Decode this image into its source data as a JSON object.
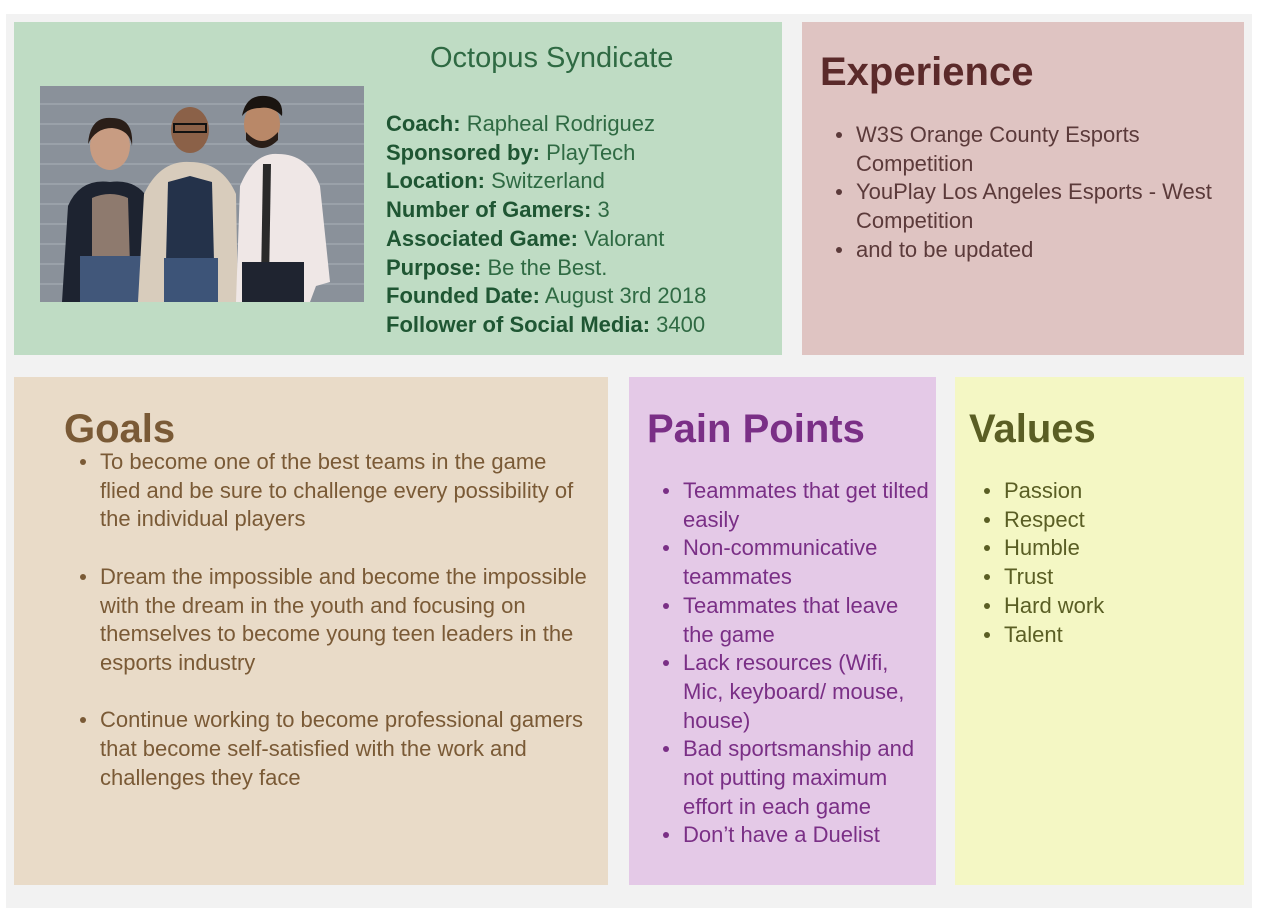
{
  "profile": {
    "title": "Octopus Syndicate",
    "details": [
      {
        "label": "Coach:",
        "value": "Rapheal Rodriguez"
      },
      {
        "label": "Sponsored by:",
        "value": "PlayTech"
      },
      {
        "label": "Location:",
        "value": "Switzerland"
      },
      {
        "label": "Number of Gamers:",
        "value": "3"
      },
      {
        "label": "Associated Game:",
        "value": "Valorant"
      },
      {
        "label": "Purpose:",
        "value": "Be the Best."
      },
      {
        "label": "Founded Date:",
        "value": "August 3rd 2018"
      },
      {
        "label": "Follower of Social Media:",
        "value": "3400"
      }
    ]
  },
  "experience": {
    "heading": "Experience",
    "items": [
      "W3S Orange County Esports Competition",
      "YouPlay Los Angeles Esports - West Competition",
      "and to be updated"
    ]
  },
  "goals": {
    "heading": "Goals",
    "items": [
      "To become one of the best teams in the game flied and be sure to challenge every possibility of the individual players",
      "Dream the impossible and become the impossible with the dream in the youth and focusing on themselves to become young teen leaders in the esports industry",
      "Continue working to become professional gamers that become self-satisfied with the work and challenges they face"
    ]
  },
  "pain_points": {
    "heading": "Pain Points",
    "items": [
      "Teammates that get tilted easily",
      "Non-communicative teammates",
      "Teammates that leave the game",
      "Lack resources (Wifi, Mic, keyboard/ mouse, house)",
      "Bad sportsmanship and not putting maximum effort in each game",
      "Don’t have a Duelist"
    ]
  },
  "values": {
    "heading": "Values",
    "items": [
      "Passion",
      "Respect",
      "Humble",
      "Trust",
      "Hard work",
      "Talent"
    ]
  },
  "colors": {
    "profile_bg": "#bfdcc4",
    "experience_bg": "#dfc4c2",
    "goals_bg": "#e9dbc8",
    "pain_bg": "#e4c9e7",
    "values_bg": "#f4f7c4"
  }
}
